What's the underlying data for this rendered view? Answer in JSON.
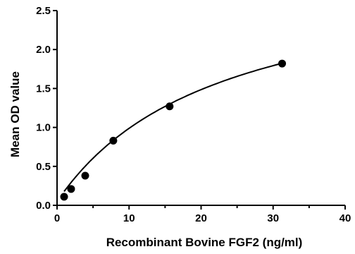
{
  "chart_data": {
    "type": "scatter",
    "xlabel": "Recombinant Bovine FGF2 (ng/ml)",
    "ylabel": "Mean OD value",
    "xlim": [
      0,
      40
    ],
    "ylim": [
      0,
      2.5
    ],
    "xticks": [
      "0",
      "10",
      "20",
      "30",
      "40"
    ],
    "yticks": [
      "0.0",
      "0.5",
      "1.0",
      "1.5",
      "2.0",
      "2.5"
    ],
    "xtick_values": [
      0,
      10,
      20,
      30,
      40
    ],
    "ytick_values": [
      0,
      0.5,
      1.0,
      1.5,
      2.0,
      2.5
    ],
    "grid": false,
    "series": [
      {
        "x": [
          0.98,
          1.95,
          3.91,
          7.81,
          15.63,
          31.25
        ],
        "y": [
          0.11,
          0.21,
          0.38,
          0.83,
          1.27,
          1.82
        ]
      }
    ],
    "fit_curve": "smooth saturating fit through points"
  }
}
